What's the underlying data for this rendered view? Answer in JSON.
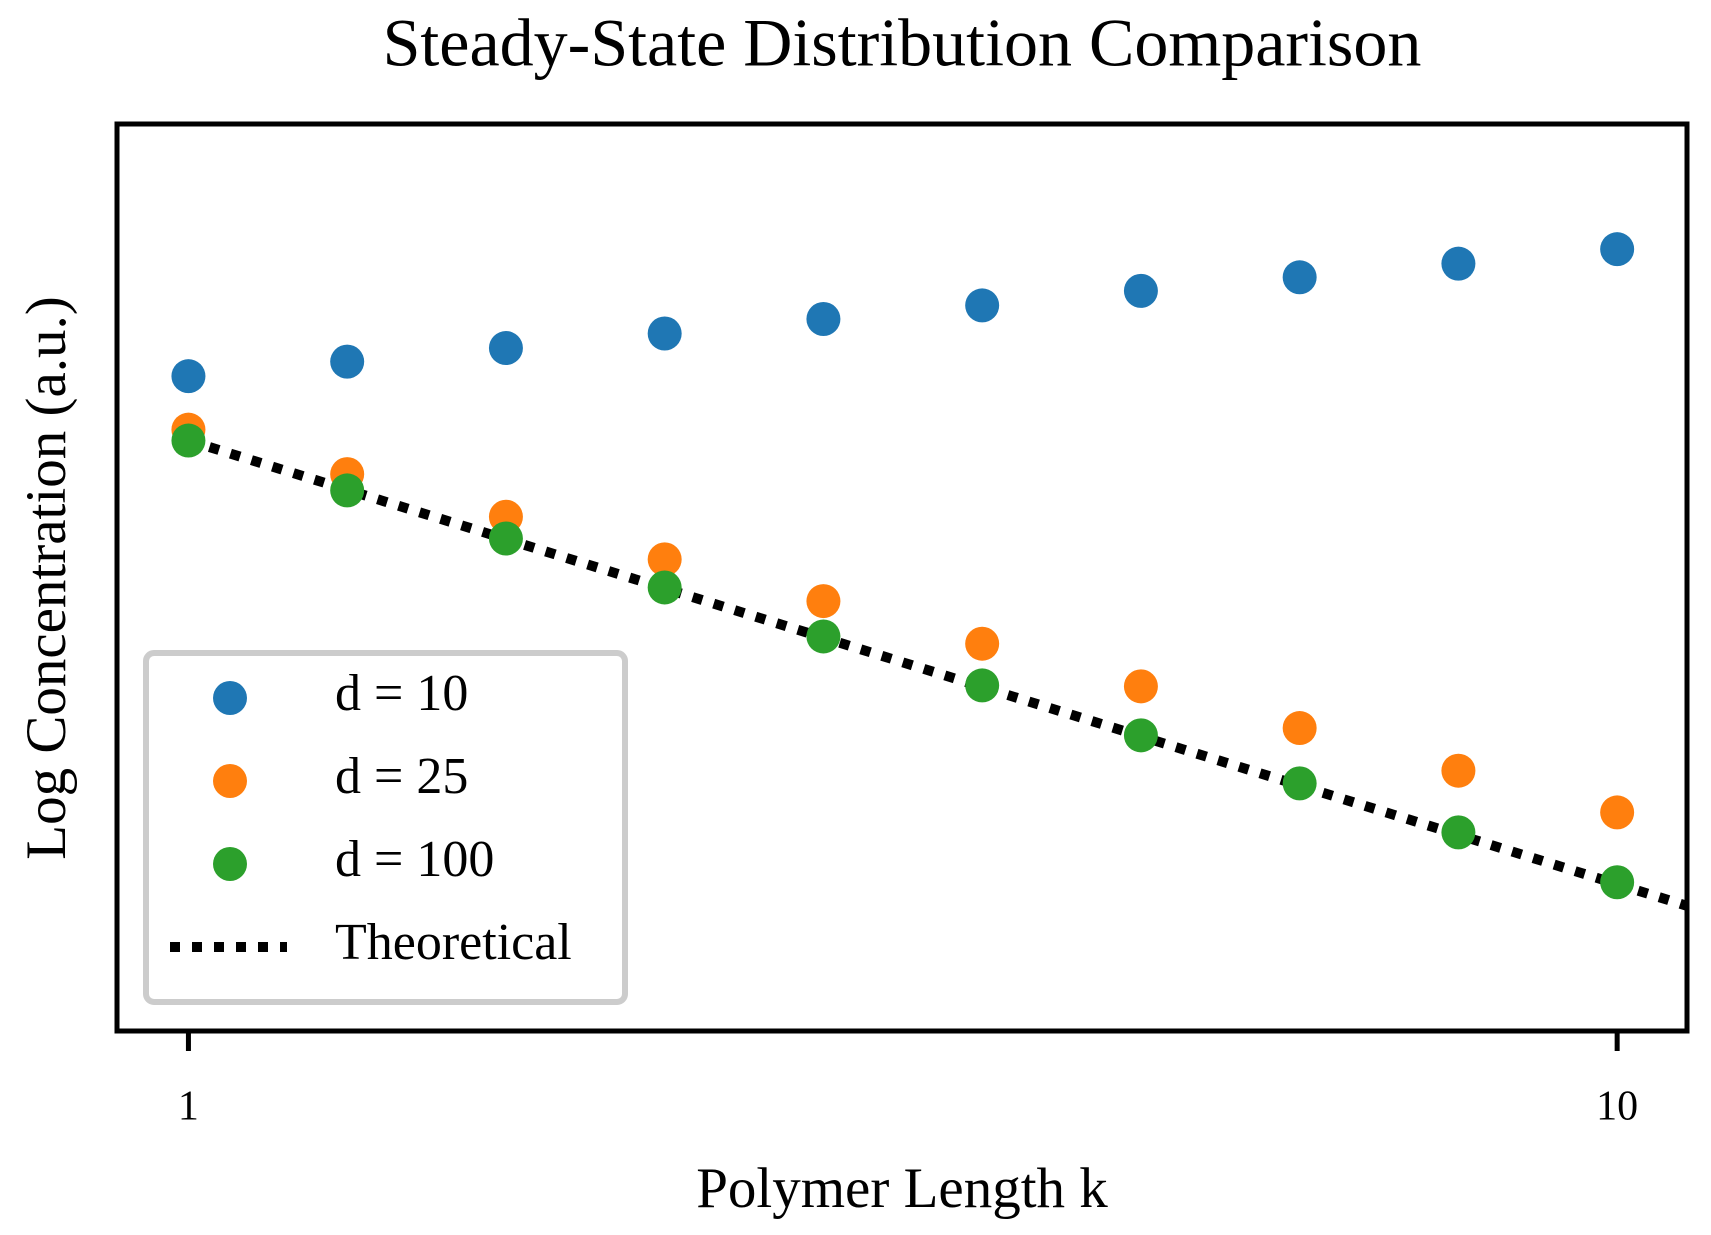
{
  "chart_data": {
    "type": "scatter",
    "title": "Steady-State Distribution Comparison",
    "x_label": "Polymer Length k",
    "y_label": "Log Concentration (a.u.)",
    "x": [
      1,
      2,
      3,
      4,
      5,
      6,
      7,
      8,
      9,
      10
    ],
    "xlim": [
      0.55,
      10.44
    ],
    "xticks": [
      1,
      10
    ],
    "ylim": [
      0,
      10
    ],
    "legend": "lower left",
    "series": [
      {
        "name": "d = 10",
        "color": "#1f77b4",
        "style": "marker",
        "values": [
          7.22,
          7.38,
          7.53,
          7.69,
          7.85,
          8.0,
          8.16,
          8.31,
          8.46,
          8.62
        ]
      },
      {
        "name": "d = 25",
        "color": "#ff7f0e",
        "style": "marker",
        "values": [
          6.63,
          6.14,
          5.67,
          5.2,
          4.74,
          4.27,
          3.8,
          3.34,
          2.87,
          2.41
        ]
      },
      {
        "name": "d = 100",
        "color": "#2ca02c",
        "style": "marker",
        "values": [
          6.51,
          5.96,
          5.43,
          4.89,
          4.35,
          3.81,
          3.26,
          2.73,
          2.19,
          1.64
        ]
      },
      {
        "name": "Theoretical",
        "color": "#000000",
        "style": "dotted",
        "x": [
          1,
          10.44
        ],
        "values": [
          6.51,
          1.38
        ]
      }
    ]
  }
}
